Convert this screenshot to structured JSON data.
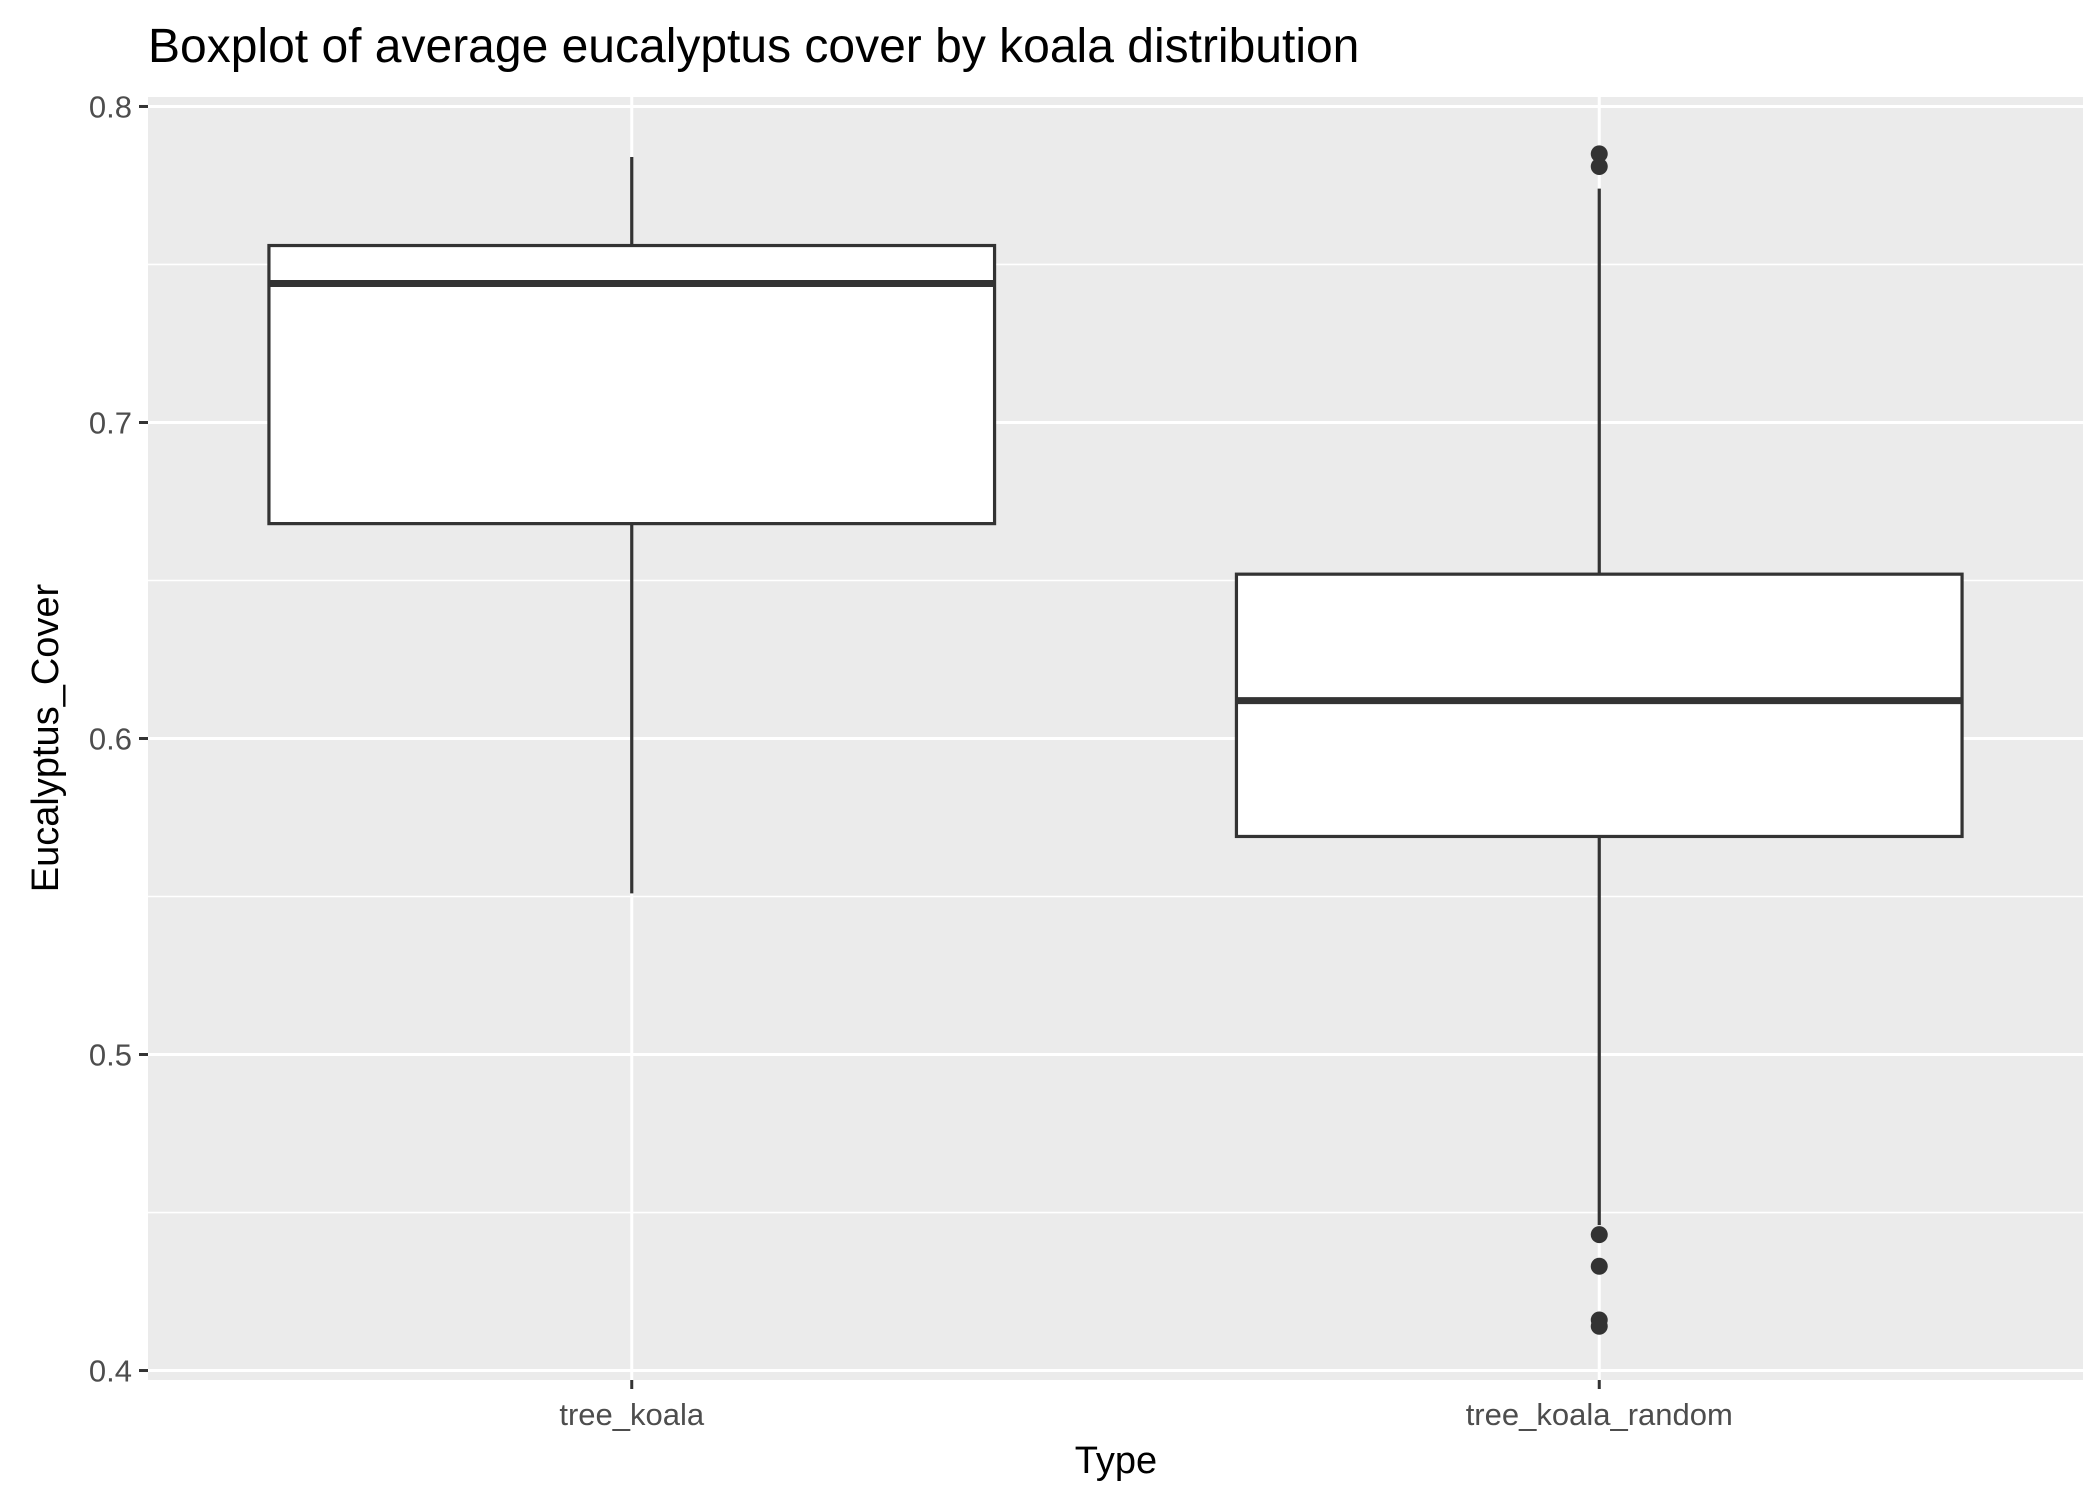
{
  "chart_data": {
    "type": "boxplot",
    "title": "Boxplot of average eucalyptus cover by koala distribution",
    "xlabel": "Type",
    "ylabel": "Eucalyptus_Cover",
    "ylim": [
      0.397,
      0.803
    ],
    "yticks": [
      0.4,
      0.5,
      0.6,
      0.7,
      0.8
    ],
    "ytick_labels": [
      "0.4",
      "0.5",
      "0.6",
      "0.7",
      "0.8"
    ],
    "grid": true,
    "categories": [
      "tree_koala",
      "tree_koala_random"
    ],
    "boxes": [
      {
        "category": "tree_koala",
        "whisker_low": 0.551,
        "q1": 0.668,
        "median": 0.744,
        "q3": 0.756,
        "whisker_high": 0.784,
        "outliers": []
      },
      {
        "category": "tree_koala_random",
        "whisker_low": 0.446,
        "q1": 0.569,
        "median": 0.612,
        "q3": 0.652,
        "whisker_high": 0.774,
        "outliers": [
          0.785,
          0.781,
          0.443,
          0.433,
          0.416,
          0.414
        ]
      }
    ],
    "colors": {
      "panel": "#ebebeb",
      "grid": "#ffffff",
      "box_line": "#333333",
      "box_fill": "#ffffff"
    }
  }
}
